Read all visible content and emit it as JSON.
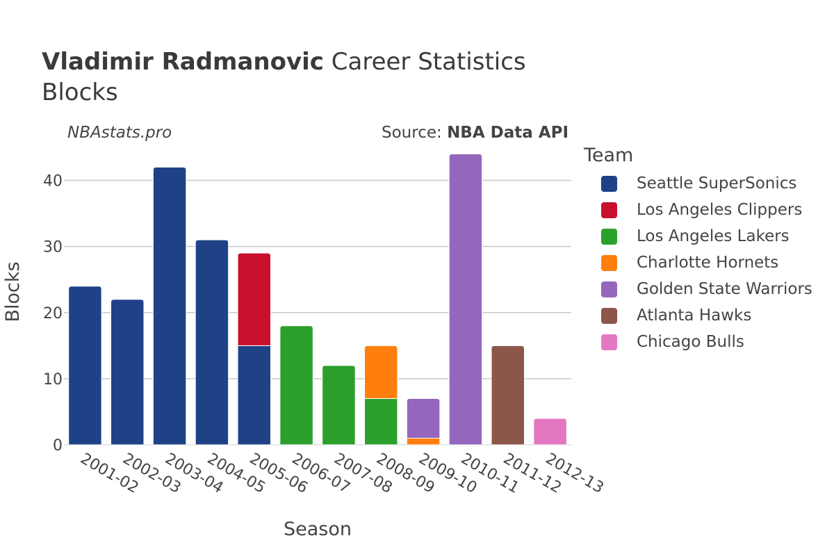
{
  "header": {
    "title_bold": "Vladimir Radmanovic",
    "title_rest": "Career Statistics",
    "subtitle": "Blocks",
    "credit": "NBAstats.pro",
    "source_prefix": "Source: ",
    "source_name": "NBA Data API"
  },
  "legend": {
    "title": "Team",
    "items": [
      {
        "name": "Seattle SuperSonics",
        "color": "#1f4287"
      },
      {
        "name": "Los Angeles Clippers",
        "color": "#c8102e"
      },
      {
        "name": "Los Angeles Lakers",
        "color": "#2ca02c"
      },
      {
        "name": "Charlotte Hornets",
        "color": "#ff7f0e"
      },
      {
        "name": "Golden State Warriors",
        "color": "#9467bd"
      },
      {
        "name": "Atlanta Hawks",
        "color": "#8c564b"
      },
      {
        "name": "Chicago Bulls",
        "color": "#e377c2"
      }
    ]
  },
  "chart_data": {
    "type": "bar",
    "stacked": true,
    "title": "Vladimir Radmanovic Career Statistics",
    "subtitle": "Blocks",
    "xlabel": "Season",
    "ylabel": "Blocks",
    "ylim": [
      0,
      45
    ],
    "yticks": [
      0,
      10,
      20,
      30,
      40
    ],
    "grid": true,
    "categories": [
      "2001-02",
      "2002-03",
      "2003-04",
      "2004-05",
      "2005-06",
      "2006-07",
      "2007-08",
      "2008-09",
      "2009-10",
      "2010-11",
      "2011-12",
      "2012-13"
    ],
    "series": [
      {
        "name": "Seattle SuperSonics",
        "values": [
          24,
          22,
          42,
          31,
          15,
          0,
          0,
          0,
          0,
          0,
          0,
          0
        ]
      },
      {
        "name": "Los Angeles Clippers",
        "values": [
          0,
          0,
          0,
          0,
          14,
          0,
          0,
          0,
          0,
          0,
          0,
          0
        ]
      },
      {
        "name": "Los Angeles Lakers",
        "values": [
          0,
          0,
          0,
          0,
          0,
          18,
          12,
          7,
          0,
          0,
          0,
          0
        ]
      },
      {
        "name": "Charlotte Hornets",
        "values": [
          0,
          0,
          0,
          0,
          0,
          0,
          0,
          8,
          1,
          0,
          0,
          0
        ]
      },
      {
        "name": "Golden State Warriors",
        "values": [
          0,
          0,
          0,
          0,
          0,
          0,
          0,
          0,
          6,
          44,
          0,
          0
        ]
      },
      {
        "name": "Atlanta Hawks",
        "values": [
          0,
          0,
          0,
          0,
          0,
          0,
          0,
          0,
          0,
          0,
          15,
          0
        ]
      },
      {
        "name": "Chicago Bulls",
        "values": [
          0,
          0,
          0,
          0,
          0,
          0,
          0,
          0,
          0,
          0,
          0,
          4
        ]
      }
    ]
  }
}
